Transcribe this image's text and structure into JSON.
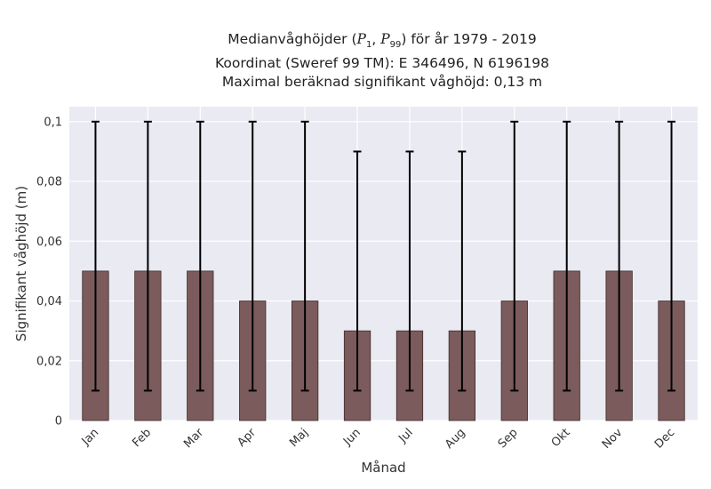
{
  "chart_data": {
    "type": "bar",
    "title_lines": [
      "Medianvåghöjder (P1, P99) för år 1979 - 2019",
      "Koordinat (Sweref 99 TM): E 346496, N 6196198",
      "Maximal beräknad signifikant våghöjd: 0,13 m"
    ],
    "title_parts": {
      "prefix": "Medianvåghöjder (",
      "p1_symbol": "P",
      "p1_sub": "1",
      "separator": ", ",
      "p99_symbol": "P",
      "p99_sub": "99",
      "suffix": ") för år 1979 - 2019"
    },
    "xlabel": "Månad",
    "ylabel": "Signifikant våghöjd (m)",
    "categories": [
      "Jan",
      "Feb",
      "Mar",
      "Apr",
      "Maj",
      "Jun",
      "Jul",
      "Aug",
      "Sep",
      "Okt",
      "Nov",
      "Dec"
    ],
    "values": [
      0.05,
      0.05,
      0.05,
      0.04,
      0.04,
      0.03,
      0.03,
      0.03,
      0.04,
      0.05,
      0.05,
      0.04
    ],
    "error_low": [
      0.01,
      0.01,
      0.01,
      0.01,
      0.01,
      0.01,
      0.01,
      0.01,
      0.01,
      0.01,
      0.01,
      0.01
    ],
    "error_high": [
      0.1,
      0.1,
      0.1,
      0.1,
      0.1,
      0.09,
      0.09,
      0.09,
      0.1,
      0.1,
      0.1,
      0.1
    ],
    "ylim": [
      0,
      0.105
    ],
    "yticks": [
      0,
      0.02,
      0.04,
      0.06,
      0.08,
      0.1
    ],
    "ytick_labels": [
      "0",
      "0,02",
      "0,04",
      "0,06",
      "0,08",
      "0,1"
    ],
    "grid": true,
    "colors": {
      "bar": "#7b5b5b",
      "bar_edge": "#3e2a2a",
      "error": "#000000",
      "background": "#eaeaf2",
      "grid": "#ffffff"
    }
  }
}
